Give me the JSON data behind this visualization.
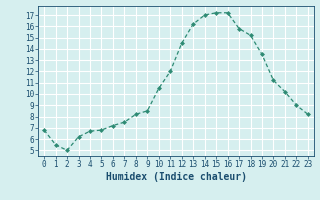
{
  "x": [
    0,
    1,
    2,
    3,
    4,
    5,
    6,
    7,
    8,
    9,
    10,
    11,
    12,
    13,
    14,
    15,
    16,
    17,
    18,
    19,
    20,
    21,
    22,
    23
  ],
  "y": [
    6.8,
    5.5,
    5.0,
    6.2,
    6.7,
    6.8,
    7.2,
    7.5,
    8.2,
    8.5,
    10.5,
    12.0,
    14.5,
    16.2,
    17.0,
    17.2,
    17.2,
    15.8,
    15.2,
    13.5,
    11.2,
    10.2,
    9.0,
    8.2
  ],
  "line_color": "#2e8b74",
  "marker": "D",
  "marker_size": 2.0,
  "bg_color": "#d6efef",
  "grid_color": "#ffffff",
  "xlabel": "Humidex (Indice chaleur)",
  "ylim": [
    4.5,
    17.8
  ],
  "xlim": [
    -0.5,
    23.5
  ],
  "yticks": [
    5,
    6,
    7,
    8,
    9,
    10,
    11,
    12,
    13,
    14,
    15,
    16,
    17
  ],
  "xticks": [
    0,
    1,
    2,
    3,
    4,
    5,
    6,
    7,
    8,
    9,
    10,
    11,
    12,
    13,
    14,
    15,
    16,
    17,
    18,
    19,
    20,
    21,
    22,
    23
  ],
  "tick_fontsize": 5.5,
  "xlabel_fontsize": 7.0,
  "label_color": "#1a4d6e",
  "linewidth": 0.9
}
